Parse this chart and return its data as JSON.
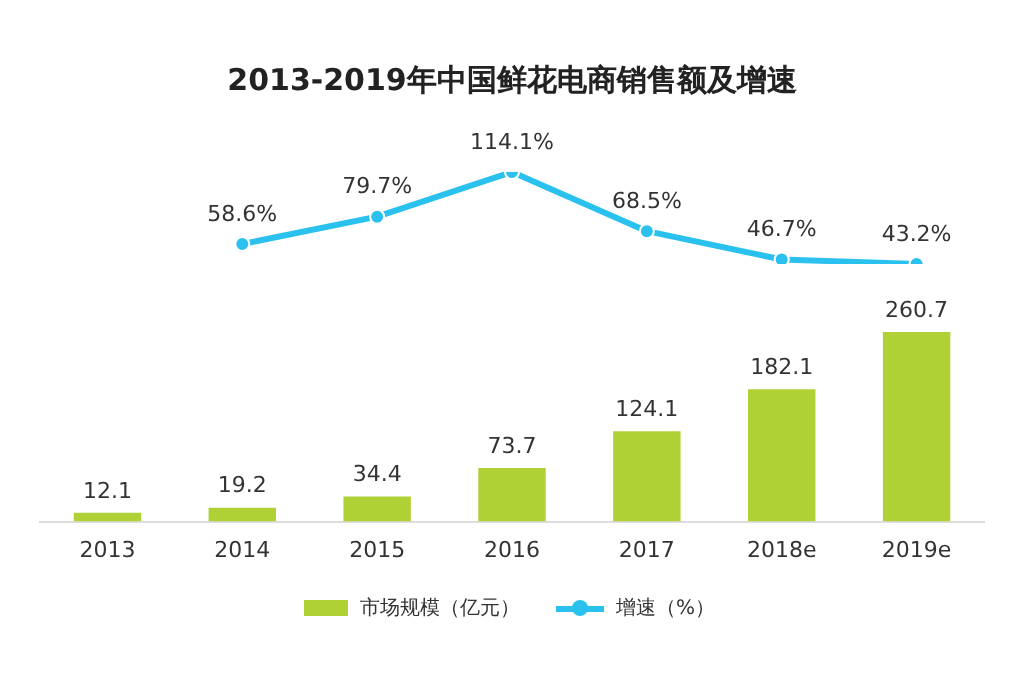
{
  "chart_data": [
    {
      "type": "line",
      "title": "2013-2019年中国鲜花电商销售额及增速",
      "categories": [
        null,
        null,
        null,
        null,
        null,
        null,
        null
      ],
      "series": [
        {
          "name": "增速（%）",
          "color": "#2bc1ee",
          "values": [
            null,
            58.6,
            79.7,
            114.1,
            68.5,
            46.7,
            43.2
          ],
          "value_labels": [
            null,
            "58.6%",
            "79.7%",
            "114.1%",
            "68.5%",
            "46.7%",
            "43.2%"
          ]
        }
      ],
      "grid": false,
      "legend": "bottom",
      "marker": "circle",
      "tick_labels": false
    },
    {
      "type": "bar",
      "categories": [
        "2013",
        "2014",
        "2015",
        "2016",
        "2017",
        "2018e",
        "2019e"
      ],
      "series": [
        {
          "name": "市场规模（亿元）",
          "color": "#b0d136",
          "values": [
            12.1,
            19.2,
            34.4,
            73.7,
            124.1,
            182.1,
            260.7
          ]
        }
      ],
      "data_labels": true,
      "grid": false,
      "legend": "bottom",
      "tick_labels": "x"
    }
  ]
}
